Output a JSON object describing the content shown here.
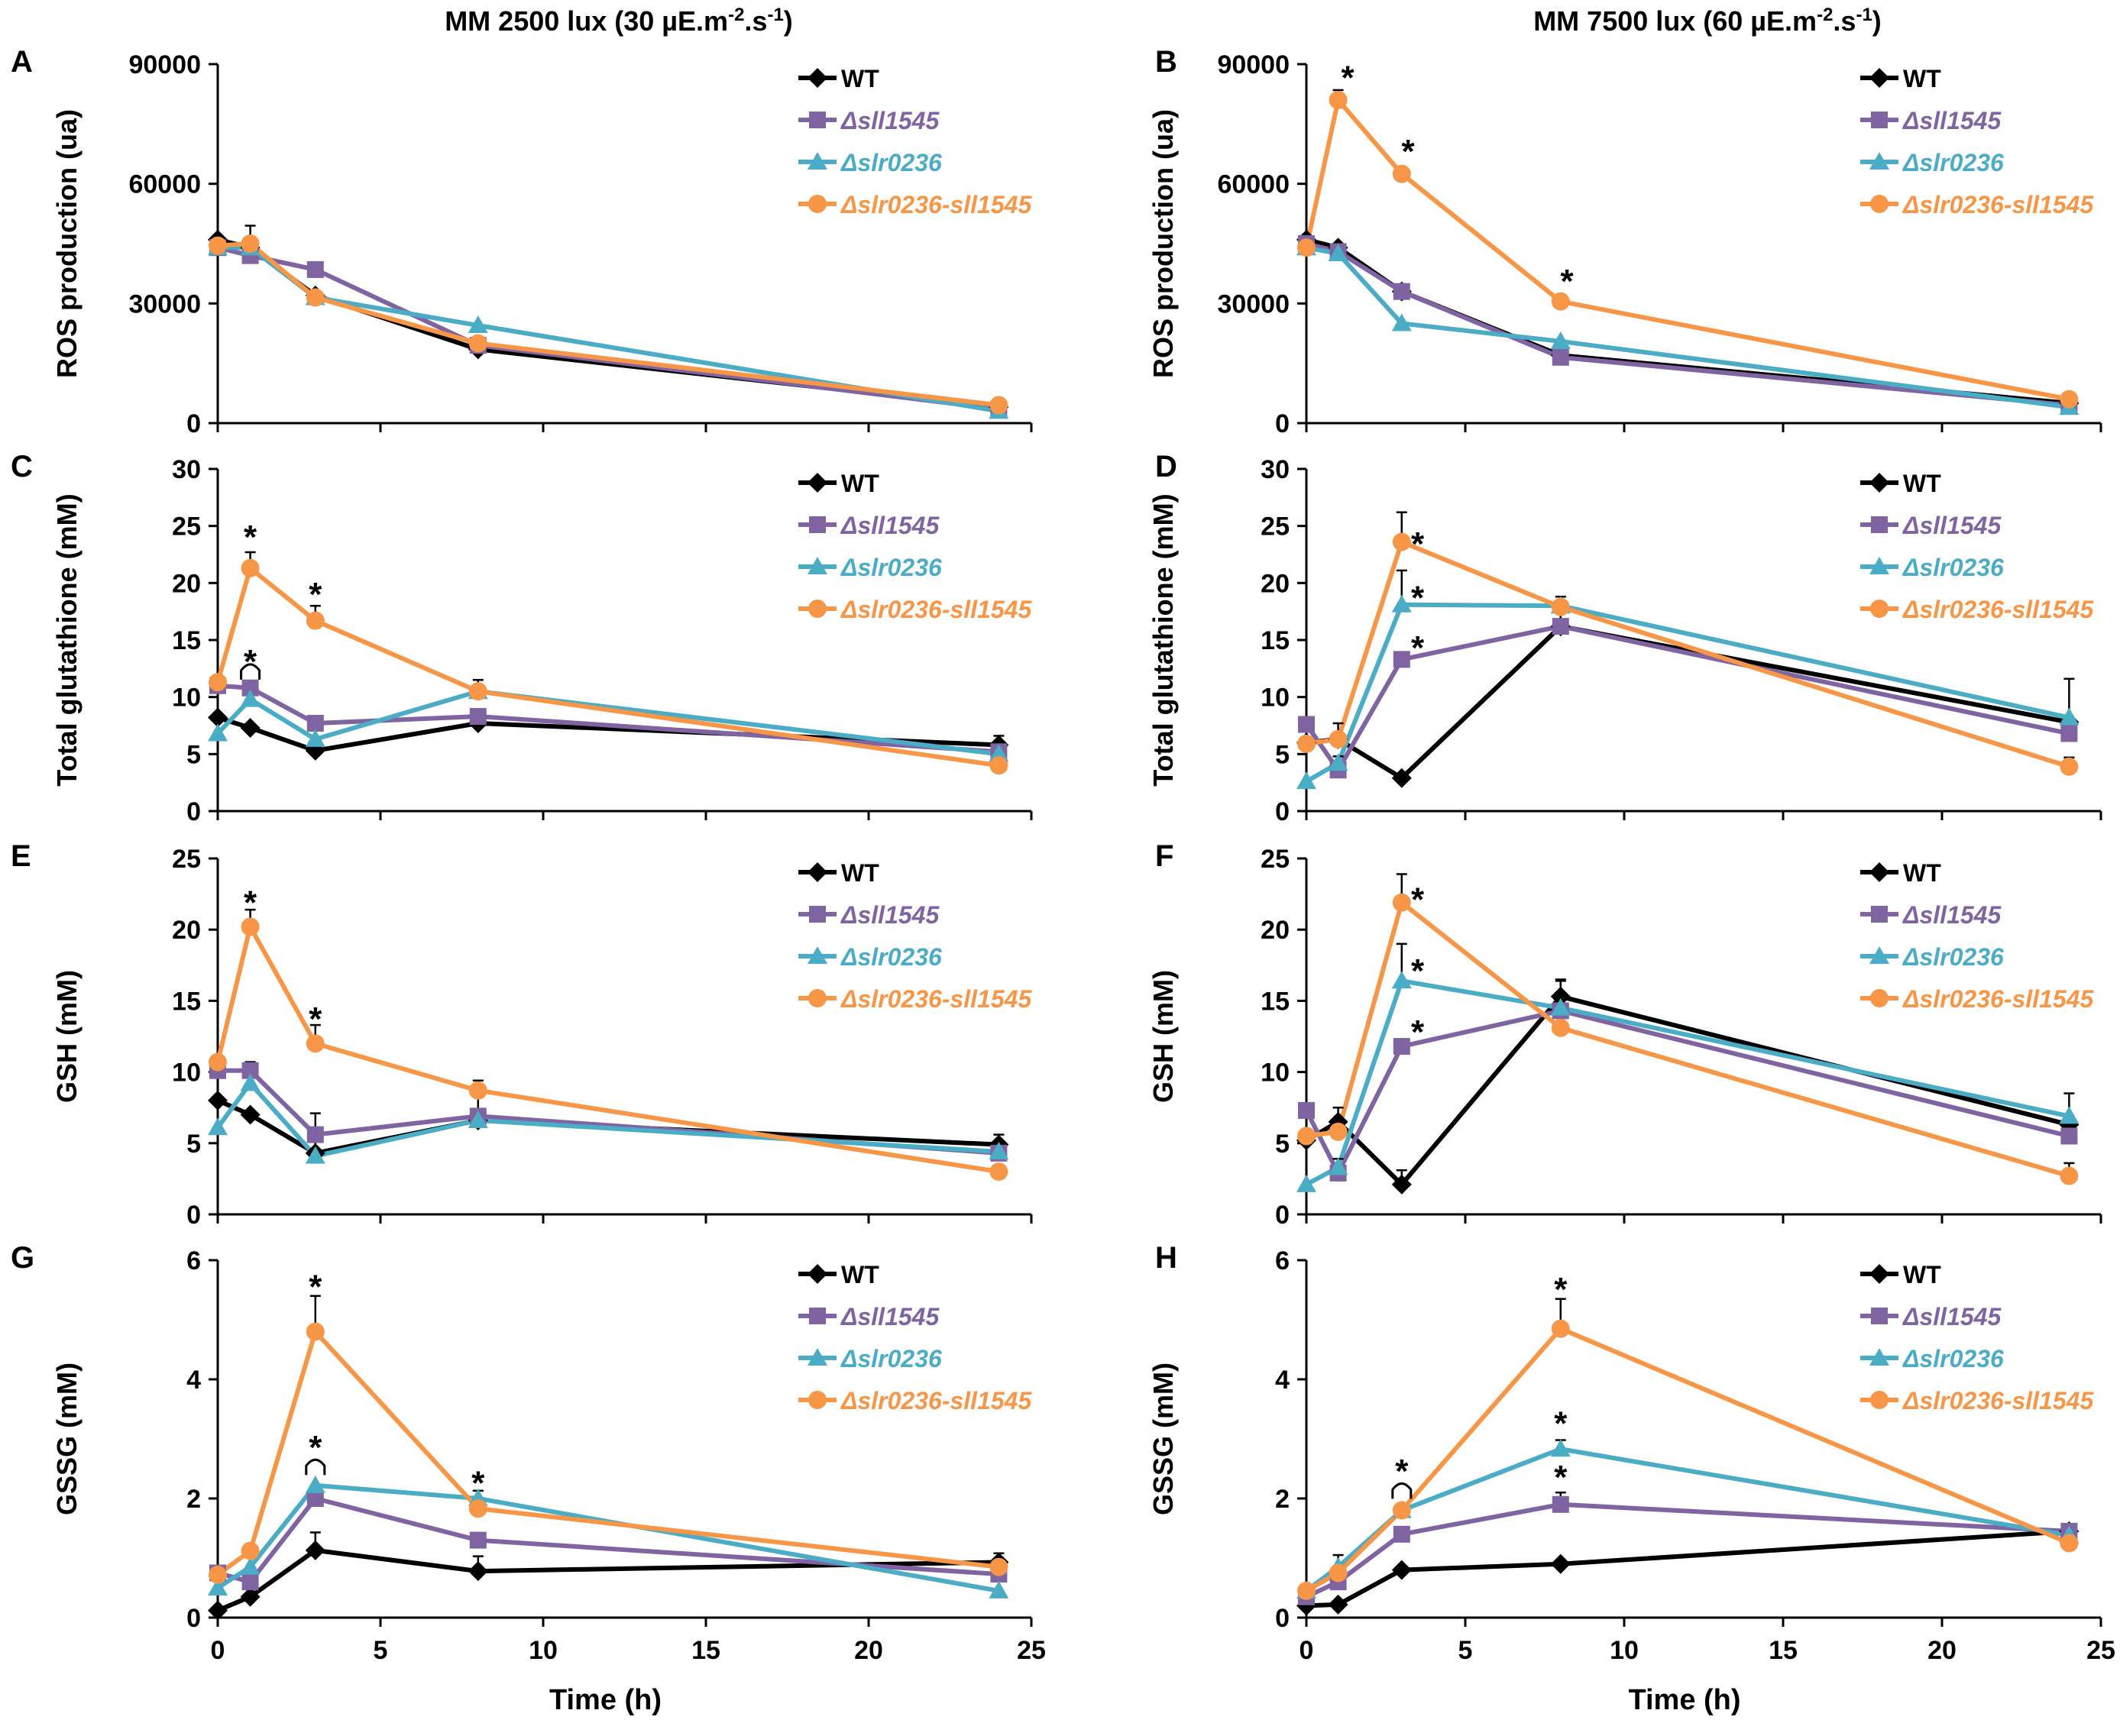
{
  "colors": {
    "WT": "#000000",
    "sll1545": "#8064a2",
    "slr0236": "#4bacc6",
    "double": "#f79646",
    "axis": "#000000",
    "text": "#000000"
  },
  "column_titles": {
    "left": "MM 2500 lux (30 µE.m",
    "left_sup": "-2",
    "left_mid": ".s",
    "left_sup2": "-1",
    "left_end": ")",
    "right": "MM 7500 lux (60 µE.m",
    "right_sup": "-2",
    "right_mid": ".s",
    "right_sup2": "-1",
    "right_end": ")"
  },
  "legend": [
    {
      "key": "WT",
      "label": "WT",
      "marker": "diamond",
      "italic": false
    },
    {
      "key": "sll1545",
      "label": "Δsll1545",
      "marker": "square",
      "italic": true
    },
    {
      "key": "slr0236",
      "label": "Δslr0236",
      "marker": "triangle",
      "italic": true
    },
    {
      "key": "double",
      "label": "Δslr0236-sll1545",
      "marker": "circle",
      "italic": true
    }
  ],
  "star_symbol": "*",
  "chart_data": [
    {
      "panel": "A",
      "type": "line",
      "ylabel": "ROS production (ua)",
      "xlabel": "",
      "ylim": [
        0,
        90000
      ],
      "yticks": [
        0,
        30000,
        60000,
        90000
      ],
      "xlim": [
        0,
        25
      ],
      "xticks": [
        0,
        5,
        10,
        15,
        20,
        25
      ],
      "show_x_ticklabels": false,
      "x": [
        0,
        1,
        3,
        8,
        24
      ],
      "series": [
        {
          "key": "WT",
          "values": [
            46000,
            44000,
            32000,
            18500,
            4000
          ],
          "errors": [
            0,
            0,
            0,
            0,
            0
          ]
        },
        {
          "key": "sll1545",
          "values": [
            44000,
            42000,
            38500,
            19500,
            3500
          ],
          "errors": [
            0,
            0,
            0,
            0,
            0
          ]
        },
        {
          "key": "slr0236",
          "values": [
            44000,
            44000,
            31500,
            24500,
            3000
          ],
          "errors": [
            0,
            0,
            0,
            0,
            0
          ]
        },
        {
          "key": "double",
          "values": [
            44500,
            45000,
            31500,
            20000,
            4500
          ],
          "errors": [
            0,
            4500,
            0,
            0,
            0
          ]
        }
      ],
      "annotations": []
    },
    {
      "panel": "B",
      "type": "line",
      "ylabel": "ROS production (ua)",
      "xlabel": "",
      "ylim": [
        0,
        90000
      ],
      "yticks": [
        0,
        30000,
        60000,
        90000
      ],
      "xlim": [
        0,
        25
      ],
      "xticks": [
        0,
        5,
        10,
        15,
        20,
        25
      ],
      "show_x_ticklabels": false,
      "x": [
        0,
        1,
        3,
        8,
        24
      ],
      "series": [
        {
          "key": "WT",
          "values": [
            46000,
            44000,
            33000,
            17000,
            5000
          ],
          "errors": [
            0,
            0,
            0,
            0,
            0
          ]
        },
        {
          "key": "sll1545",
          "values": [
            45000,
            43000,
            33000,
            16500,
            4500
          ],
          "errors": [
            0,
            0,
            0,
            0,
            0
          ]
        },
        {
          "key": "slr0236",
          "values": [
            44000,
            42500,
            25000,
            20500,
            4000
          ],
          "errors": [
            0,
            0,
            0,
            0,
            0
          ]
        },
        {
          "key": "double",
          "values": [
            44000,
            81000,
            62500,
            30500,
            6000
          ],
          "errors": [
            0,
            2500,
            0,
            0,
            0
          ]
        }
      ],
      "annotations": [
        {
          "x": 1.3,
          "y": 88000
        },
        {
          "x": 3.2,
          "y": 69500
        },
        {
          "x": 8.2,
          "y": 37000
        }
      ]
    },
    {
      "panel": "C",
      "type": "line",
      "ylabel": "Total glutathione (mM)",
      "xlabel": "",
      "ylim": [
        0,
        30
      ],
      "yticks": [
        0,
        5,
        10,
        15,
        20,
        25,
        30
      ],
      "xlim": [
        0,
        25
      ],
      "xticks": [
        0,
        5,
        10,
        15,
        20,
        25
      ],
      "show_x_ticklabels": false,
      "x": [
        0,
        1,
        3,
        8,
        24
      ],
      "series": [
        {
          "key": "WT",
          "values": [
            8.2,
            7.3,
            5.3,
            7.7,
            5.8
          ],
          "errors": [
            0,
            0,
            0.9,
            1.2,
            0.8
          ]
        },
        {
          "key": "sll1545",
          "values": [
            11,
            10.8,
            7.7,
            8.3,
            5.2
          ],
          "errors": [
            0,
            0,
            0,
            0,
            0
          ]
        },
        {
          "key": "slr0236",
          "values": [
            6.8,
            9.8,
            6.3,
            10.5,
            5
          ],
          "errors": [
            0,
            0,
            0,
            0,
            0
          ]
        },
        {
          "key": "double",
          "values": [
            11.3,
            21.3,
            16.7,
            10.5,
            4
          ],
          "errors": [
            0,
            1.4,
            1.3,
            1.0,
            0
          ]
        }
      ],
      "annotations": [
        {
          "x": 1,
          "y": 24.5
        },
        {
          "x": 3,
          "y": 19.5
        },
        {
          "x": 1,
          "y": 13.6
        }
      ],
      "brackets": [
        {
          "x": 1,
          "y": 12.6
        }
      ]
    },
    {
      "panel": "D",
      "type": "line",
      "ylabel": "Total glutathione (mM)",
      "xlabel": "",
      "ylim": [
        0,
        30
      ],
      "yticks": [
        0,
        5,
        10,
        15,
        20,
        25,
        30
      ],
      "xlim": [
        0,
        25
      ],
      "xticks": [
        0,
        5,
        10,
        15,
        20,
        25
      ],
      "show_x_ticklabels": false,
      "x": [
        0,
        1,
        3,
        8,
        24
      ],
      "series": [
        {
          "key": "WT",
          "values": [
            6,
            6.3,
            2.9,
            16.2,
            7.8
          ],
          "errors": [
            0,
            1.4,
            0,
            1.5,
            3.8
          ]
        },
        {
          "key": "sll1545",
          "values": [
            7.6,
            3.6,
            13.3,
            16.2,
            6.8
          ],
          "errors": [
            0,
            1.2,
            0,
            0,
            0
          ]
        },
        {
          "key": "slr0236",
          "values": [
            2.6,
            4.2,
            18.1,
            18.0,
            8.2
          ],
          "errors": [
            0,
            0,
            3.0,
            0,
            0
          ]
        },
        {
          "key": "double",
          "values": [
            5.9,
            6.3,
            23.6,
            17.9,
            3.9
          ],
          "errors": [
            0,
            0,
            2.6,
            0.9,
            0.8
          ]
        }
      ],
      "annotations": [
        {
          "x": 3.5,
          "y": 23.9
        },
        {
          "x": 3.5,
          "y": 19.2
        },
        {
          "x": 3.5,
          "y": 14.8
        }
      ]
    },
    {
      "panel": "E",
      "type": "line",
      "ylabel": "GSH (mM)",
      "xlabel": "",
      "ylim": [
        0,
        25
      ],
      "yticks": [
        0,
        5,
        10,
        15,
        20,
        25
      ],
      "xlim": [
        0,
        25
      ],
      "xticks": [
        0,
        5,
        10,
        15,
        20,
        25
      ],
      "show_x_ticklabels": false,
      "x": [
        0,
        1,
        3,
        8,
        24
      ],
      "series": [
        {
          "key": "WT",
          "values": [
            8,
            7,
            4.3,
            6.6,
            4.9
          ],
          "errors": [
            0,
            0,
            0,
            0,
            0.7
          ]
        },
        {
          "key": "sll1545",
          "values": [
            10.1,
            10.1,
            5.6,
            6.9,
            4.3
          ],
          "errors": [
            0,
            0.6,
            1.5,
            1.6,
            0
          ]
        },
        {
          "key": "slr0236",
          "values": [
            6.1,
            9.2,
            4.1,
            6.6,
            4.4
          ],
          "errors": [
            0,
            0,
            1.0,
            0,
            0
          ]
        },
        {
          "key": "double",
          "values": [
            10.7,
            20.2,
            12,
            8.7,
            3
          ],
          "errors": [
            0,
            1.2,
            1.3,
            0.7,
            0
          ]
        }
      ],
      "annotations": [
        {
          "x": 1,
          "y": 22.3
        },
        {
          "x": 3,
          "y": 14.1
        }
      ]
    },
    {
      "panel": "F",
      "type": "line",
      "ylabel": "GSH (mM)",
      "xlabel": "",
      "ylim": [
        0,
        25
      ],
      "yticks": [
        0,
        5,
        10,
        15,
        20,
        25
      ],
      "xlim": [
        0,
        25
      ],
      "xticks": [
        0,
        5,
        10,
        15,
        20,
        25
      ],
      "show_x_ticklabels": false,
      "x": [
        0,
        1,
        3,
        8,
        24
      ],
      "series": [
        {
          "key": "WT",
          "values": [
            5.2,
            6.5,
            2.1,
            15.3,
            6.3
          ],
          "errors": [
            0,
            1.0,
            1.0,
            1.2,
            2.2
          ]
        },
        {
          "key": "sll1545",
          "values": [
            7.3,
            2.9,
            11.8,
            14.3,
            5.5
          ],
          "errors": [
            0,
            1.0,
            0,
            0,
            0
          ]
        },
        {
          "key": "slr0236",
          "values": [
            2.1,
            3.3,
            16.4,
            14.5,
            6.9
          ],
          "errors": [
            0,
            0,
            2.6,
            0,
            0
          ]
        },
        {
          "key": "double",
          "values": [
            5.5,
            5.8,
            21.9,
            13.1,
            2.7
          ],
          "errors": [
            0,
            0,
            2.0,
            3.3,
            0.9
          ]
        }
      ],
      "annotations": [
        {
          "x": 3.5,
          "y": 22.5
        },
        {
          "x": 3.5,
          "y": 17.5
        },
        {
          "x": 3.5,
          "y": 13.2
        }
      ]
    },
    {
      "panel": "G",
      "type": "line",
      "ylabel": "GSSG (mM)",
      "xlabel": "Time (h)",
      "ylim": [
        0,
        6
      ],
      "yticks": [
        0,
        2,
        4,
        6
      ],
      "xlim": [
        0,
        25
      ],
      "xticks": [
        0,
        5,
        10,
        15,
        20,
        25
      ],
      "show_x_ticklabels": true,
      "x": [
        0,
        1,
        3,
        8,
        24
      ],
      "series": [
        {
          "key": "WT",
          "values": [
            0.12,
            0.35,
            1.13,
            0.78,
            0.93
          ],
          "errors": [
            0,
            0.2,
            0.3,
            0.25,
            0.15
          ]
        },
        {
          "key": "sll1545",
          "values": [
            0.75,
            0.6,
            2,
            1.3,
            0.73
          ],
          "errors": [
            0,
            0,
            0,
            0,
            0
          ]
        },
        {
          "key": "slr0236",
          "values": [
            0.5,
            0.85,
            2.22,
            2.0,
            0.45
          ],
          "errors": [
            0,
            0,
            0,
            0,
            0.2
          ]
        },
        {
          "key": "double",
          "values": [
            0.72,
            1.12,
            4.8,
            1.83,
            0.85
          ],
          "errors": [
            0,
            0,
            0.6,
            0.3,
            0
          ]
        }
      ],
      "annotations": [
        {
          "x": 3,
          "y": 5.65
        },
        {
          "x": 3,
          "y": 2.95
        },
        {
          "x": 8,
          "y": 2.35
        }
      ],
      "brackets": [
        {
          "x": 3,
          "y": 2.6
        }
      ]
    },
    {
      "panel": "H",
      "type": "line",
      "ylabel": "GSSG (mM)",
      "xlabel": "Time (h)",
      "ylim": [
        0,
        6
      ],
      "yticks": [
        0,
        2,
        4,
        6
      ],
      "xlim": [
        0,
        25
      ],
      "xticks": [
        0,
        5,
        10,
        15,
        20,
        25
      ],
      "show_x_ticklabels": true,
      "x": [
        0,
        1,
        3,
        8,
        24
      ],
      "series": [
        {
          "key": "WT",
          "values": [
            0.2,
            0.22,
            0.8,
            0.9,
            1.45
          ],
          "errors": [
            0,
            0,
            0,
            0,
            0
          ]
        },
        {
          "key": "sll1545",
          "values": [
            0.35,
            0.6,
            1.4,
            1.9,
            1.45
          ],
          "errors": [
            0,
            0,
            0,
            0.2,
            0
          ]
        },
        {
          "key": "slr0236",
          "values": [
            0.45,
            0.85,
            1.8,
            2.83,
            1.38
          ],
          "errors": [
            0,
            0.2,
            0,
            0.15,
            0
          ]
        },
        {
          "key": "double",
          "values": [
            0.45,
            0.75,
            1.8,
            4.85,
            1.25
          ],
          "errors": [
            0,
            0,
            0,
            0.5,
            0
          ]
        }
      ],
      "annotations": [
        {
          "x": 8,
          "y": 5.6
        },
        {
          "x": 8,
          "y": 3.35
        },
        {
          "x": 8,
          "y": 2.45
        },
        {
          "x": 3,
          "y": 2.55
        }
      ],
      "brackets": [
        {
          "x": 3,
          "y": 2.2
        }
      ]
    }
  ]
}
